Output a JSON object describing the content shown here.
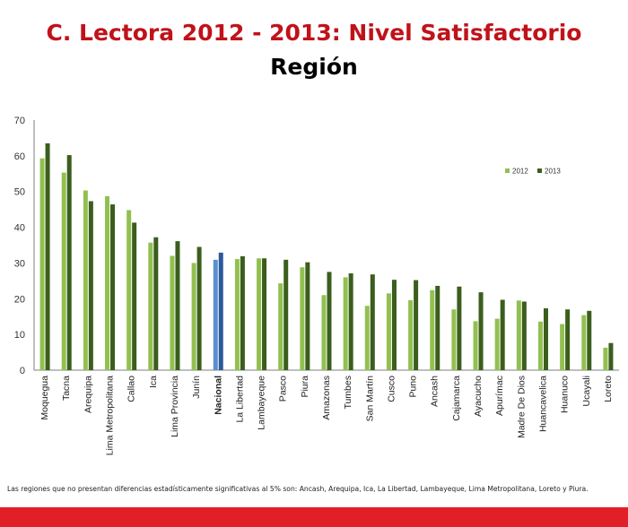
{
  "title": "C. Lectora 2012 - 2013: Nivel Satisfactorio",
  "subtitle": "Región",
  "footnote": "Las regiones que no presentan diferencias estadísticamente significativas al 5% son: Ancash, Arequipa, Ica, La Libertad, Lambayeque, Lima Metropolitana, Loreto y Piura.",
  "colors": {
    "title": "#c0121a",
    "series_2012": "#92c050",
    "series_2013": "#3b5e1d",
    "nacional_2012": "#5b8fce",
    "nacional_2013": "#2a5a9a",
    "bottom_bar": "#e11f27"
  },
  "chart_data": {
    "type": "bar",
    "categories": [
      "Moquegua",
      "Tacna",
      "Arequipa",
      "Lima Metropolitana",
      "Callao",
      "Ica",
      "Lima Provincia",
      "Junín",
      "Nacional",
      "La Libertad",
      "Lambayeque",
      "Pasco",
      "Piura",
      "Amazonas",
      "Tumbes",
      "San Martín",
      "Cusco",
      "Puno",
      "Ancash",
      "Cajamarca",
      "Ayacucho",
      "Apurímac",
      "Madre De Dios",
      "Huancavelica",
      "Huanuco",
      "Ucayali",
      "Loreto"
    ],
    "highlight_category": "Nacional",
    "series": [
      {
        "name": "2012",
        "values": [
          59.3,
          55.3,
          50.3,
          48.7,
          44.8,
          35.7,
          32.0,
          30.0,
          30.9,
          31.1,
          31.3,
          24.3,
          28.8,
          21.0,
          26.0,
          18.0,
          21.5,
          19.6,
          22.4,
          17.0,
          13.7,
          14.4,
          19.5,
          13.6,
          12.9,
          15.4,
          6.3
        ]
      },
      {
        "name": "2013",
        "values": [
          63.5,
          60.2,
          47.3,
          46.4,
          41.3,
          37.2,
          36.1,
          34.5,
          32.9,
          31.9,
          31.3,
          30.9,
          30.2,
          27.5,
          27.1,
          26.8,
          25.3,
          25.2,
          23.6,
          23.4,
          21.8,
          19.7,
          19.2,
          17.3,
          17.0,
          16.6,
          7.6
        ]
      }
    ],
    "ylim": [
      0,
      70
    ],
    "yticks": [
      0,
      10,
      20,
      30,
      40,
      50,
      60,
      70
    ],
    "legend": [
      "2012",
      "2013"
    ],
    "legend_position": "top-right"
  }
}
